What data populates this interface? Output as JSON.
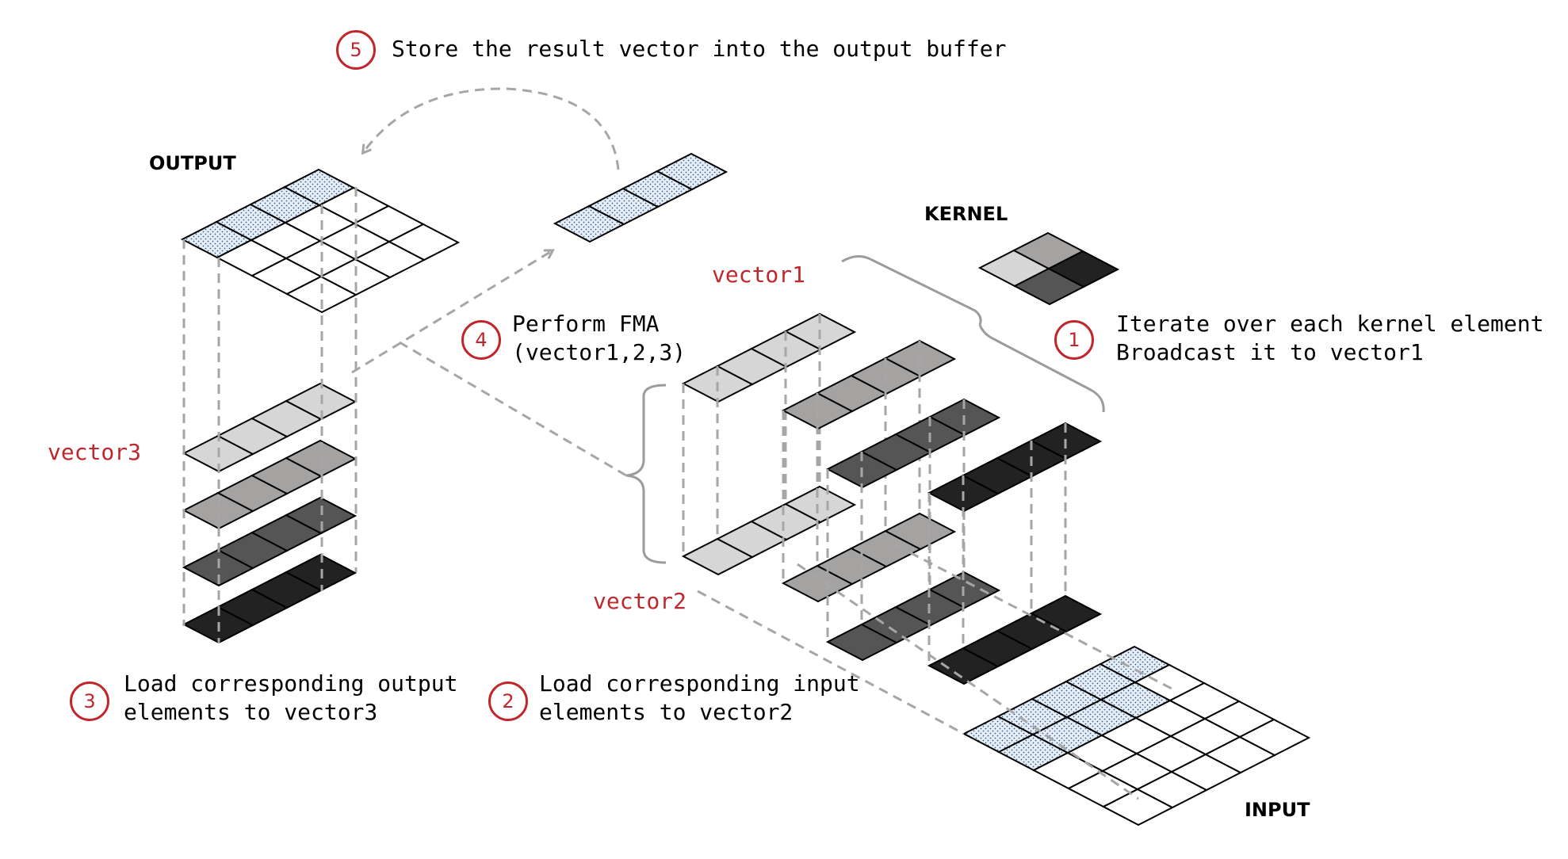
{
  "colors": {
    "accent": "#c0272d",
    "shade_light": "#d6d6d6",
    "shade_mid": "#a5a2a2",
    "shade_dark": "#555555",
    "shade_darkest": "#222222",
    "highlight_fill": "#e6eef8",
    "dashed_line": "#a6a6a6"
  },
  "labels": {
    "output": "OUTPUT",
    "kernel": "KERNEL",
    "input": "INPUT",
    "vector1": "vector1",
    "vector2": "vector2",
    "vector3": "vector3"
  },
  "steps": [
    {
      "number": "1",
      "lines": [
        "Iterate over each kernel element",
        "Broadcast it to vector1"
      ]
    },
    {
      "number": "2",
      "lines": [
        "Load corresponding input",
        "elements to vector2"
      ]
    },
    {
      "number": "3",
      "lines": [
        "Load corresponding output",
        "elements to vector3"
      ]
    },
    {
      "number": "4",
      "lines": [
        "Perform FMA",
        "(vector1,2,3)"
      ]
    },
    {
      "number": "5",
      "lines": [
        "Store the result vector into the output buffer"
      ]
    }
  ]
}
